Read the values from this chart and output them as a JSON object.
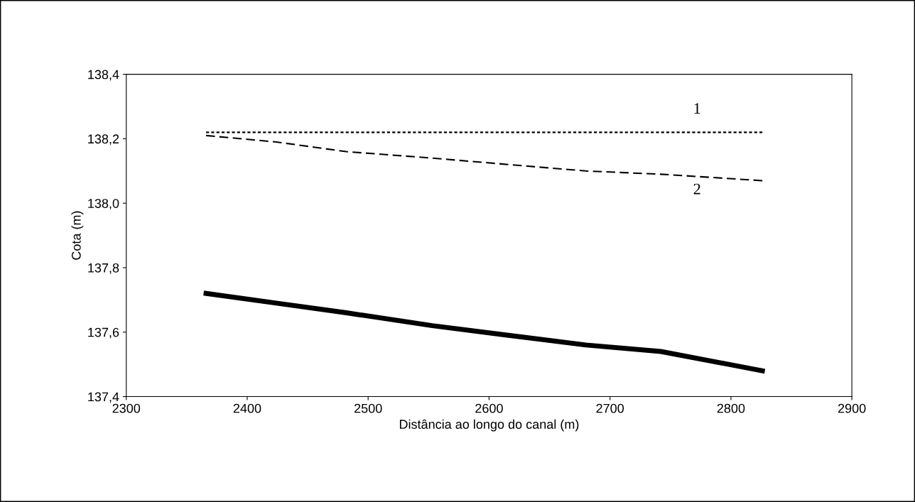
{
  "chart_data": {
    "type": "line",
    "xlabel": "Distância ao longo do canal (m)",
    "ylabel": "Cota (m)",
    "xlim": [
      2300,
      2900
    ],
    "xticks": [
      2300,
      2400,
      2500,
      2600,
      2700,
      2800,
      2900
    ],
    "ylim": [
      137.4,
      138.4
    ],
    "yticks": [
      {
        "value": 137.4,
        "label": "137,4"
      },
      {
        "value": 137.6,
        "label": "137,6"
      },
      {
        "value": 137.8,
        "label": "137,8"
      },
      {
        "value": 138.0,
        "label": "138,0"
      },
      {
        "value": 138.2,
        "label": "138,2"
      },
      {
        "value": 138.4,
        "label": "138,4"
      }
    ],
    "x": [
      2366,
      2424,
      2482,
      2553,
      2616,
      2680,
      2742,
      2826
    ],
    "grid": false,
    "legend": false,
    "marker": "none",
    "series": [
      {
        "name": "1",
        "color": "#000000",
        "line_style": "dotted",
        "values": [
          138.22,
          138.22,
          138.22,
          138.22,
          138.22,
          138.22,
          138.22,
          138.22
        ]
      },
      {
        "name": "2",
        "color": "#000000",
        "line_style": "dashed",
        "values": [
          138.21,
          138.19,
          138.16,
          138.14,
          138.12,
          138.1,
          138.09,
          138.07
        ]
      },
      {
        "color": "#000000",
        "line_style": "solid",
        "values": [
          137.72,
          137.69,
          137.66,
          137.62,
          137.59,
          137.56,
          137.54,
          137.48
        ]
      }
    ]
  }
}
